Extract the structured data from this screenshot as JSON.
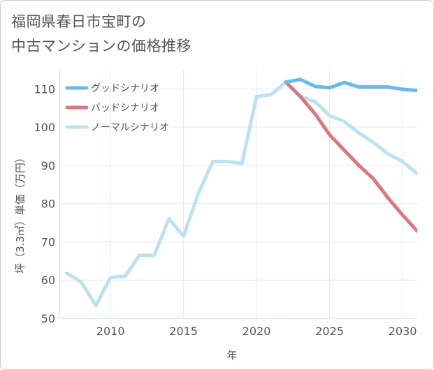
{
  "title_line1": "福岡県春日市宝町の",
  "title_line2": "中古マンションの価格推移",
  "chart_data": {
    "type": "line",
    "xlabel": "年",
    "ylabel": "坪（3.3㎡）単価（万円）",
    "xlim": [
      2006.5,
      2031
    ],
    "ylim": [
      50,
      115
    ],
    "x_ticks": [
      2010,
      2015,
      2020,
      2025,
      2030
    ],
    "y_ticks": [
      50,
      60,
      70,
      80,
      90,
      100,
      110
    ],
    "grid": true,
    "legend_position": "top-left",
    "series": [
      {
        "name": "グッドシナリオ",
        "color": "#6cb8ea",
        "x": [
          2022,
          2023,
          2024,
          2025,
          2026,
          2027,
          2028,
          2029,
          2030,
          2031
        ],
        "values": [
          111.8,
          112.5,
          110.7,
          110.3,
          111.7,
          110.5,
          110.5,
          110.5,
          109.9,
          109.6
        ]
      },
      {
        "name": "バッドシナリオ",
        "color": "#d9797f",
        "x": [
          2022,
          2023,
          2024,
          2025,
          2026,
          2027,
          2028,
          2029,
          2030,
          2031
        ],
        "values": [
          111.8,
          108.0,
          103.5,
          98.0,
          94.0,
          90.0,
          86.5,
          81.5,
          77.0,
          72.8
        ]
      },
      {
        "name": "ノーマルシナリオ",
        "color": "#bfe0ee",
        "x": [
          2007,
          2008,
          2009,
          2010,
          2011,
          2012,
          2013,
          2014,
          2015,
          2016,
          2017,
          2018,
          2019,
          2020,
          2021,
          2022,
          2023,
          2024,
          2025,
          2026,
          2027,
          2028,
          2029,
          2030,
          2031
        ],
        "values": [
          61.8,
          59.5,
          53.3,
          60.7,
          61.0,
          66.5,
          66.5,
          76.0,
          71.5,
          82.5,
          91.0,
          91.0,
          90.5,
          108.0,
          108.5,
          111.8,
          108.0,
          106.7,
          103.0,
          101.5,
          98.5,
          96.0,
          93.0,
          91.0,
          87.8
        ]
      }
    ]
  }
}
